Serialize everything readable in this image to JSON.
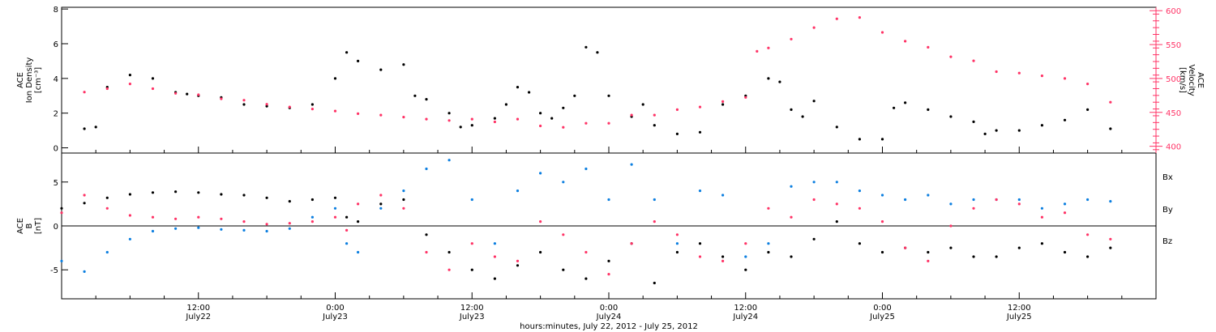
{
  "chart_data": [
    {
      "type": "scatter",
      "panel": "top",
      "ylabel_lines": [
        "ACE",
        "Ion Density",
        "[cm⁻³]"
      ],
      "ylim": [
        -0.3,
        8.1
      ],
      "y_ticks": [
        0,
        2,
        4,
        6,
        8
      ],
      "y2label_lines": [
        "ACE",
        "Velocity",
        "[km/s]"
      ],
      "y2lim": [
        390,
        605
      ],
      "y2_ticks": [
        400,
        450,
        500,
        550,
        600
      ],
      "colors": {
        "density": "#000000",
        "velocity": "#ff3366"
      },
      "series": [
        {
          "axis": "left",
          "x": [
            2,
            3,
            4,
            6,
            8,
            10,
            11,
            12,
            14,
            16,
            18,
            20,
            22,
            24,
            25,
            26,
            28,
            30,
            31,
            32,
            34,
            35,
            36,
            38,
            39,
            40,
            41,
            42,
            43,
            44,
            45,
            46,
            47,
            48,
            50,
            51,
            52,
            54,
            56,
            58,
            60,
            62,
            63,
            64,
            65,
            66,
            68,
            70,
            72,
            73,
            74,
            76,
            78,
            80,
            81,
            82,
            84,
            86,
            88,
            90,
            92
          ],
          "values": [
            1.1,
            1.2,
            3.5,
            4.2,
            4.0,
            3.2,
            3.1,
            3.0,
            2.9,
            2.5,
            2.4,
            2.3,
            2.5,
            4.0,
            5.5,
            5.0,
            4.5,
            4.8,
            3.0,
            2.8,
            2.0,
            1.2,
            1.3,
            1.7,
            2.5,
            3.5,
            3.2,
            2.0,
            1.7,
            2.3,
            3.0,
            5.8,
            5.5,
            3.0,
            1.8,
            2.5,
            1.3,
            0.8,
            0.9,
            2.5,
            3.0,
            4.0,
            3.8,
            2.2,
            1.8,
            2.7,
            1.2,
            0.5,
            0.5,
            2.3,
            2.6,
            2.2,
            1.8,
            1.5,
            0.8,
            1.0,
            1.0,
            1.3,
            1.6,
            2.2,
            1.1
          ]
        },
        {
          "axis": "right",
          "x": [
            2,
            4,
            6,
            8,
            10,
            12,
            14,
            16,
            18,
            20,
            22,
            24,
            26,
            28,
            30,
            32,
            34,
            36,
            38,
            40,
            42,
            44,
            46,
            48,
            50,
            52,
            54,
            56,
            58,
            60,
            61,
            62,
            64,
            66,
            68,
            70,
            72,
            74,
            76,
            78,
            80,
            82,
            84,
            86,
            88,
            90,
            92
          ],
          "values": [
            480,
            485,
            492,
            485,
            478,
            476,
            470,
            468,
            462,
            458,
            455,
            452,
            448,
            446,
            443,
            440,
            438,
            440,
            436,
            440,
            430,
            428,
            434,
            434,
            446,
            446,
            454,
            458,
            466,
            472,
            540,
            545,
            558,
            575,
            588,
            590,
            568,
            555,
            546,
            532,
            526,
            510,
            508,
            504,
            500,
            492,
            465
          ]
        }
      ]
    },
    {
      "type": "scatter",
      "panel": "bottom",
      "ylabel_lines": [
        "ACE",
        "B",
        "[nT]"
      ],
      "ylim": [
        -8.3,
        8.3
      ],
      "y_ticks": [
        -5,
        0,
        5
      ],
      "xlabel": "hours:minutes, July 22, 2012 - July 25, 2012",
      "x_ticks": [
        {
          "t": 12,
          "time": "12:00",
          "date": "July22"
        },
        {
          "t": 24,
          "time": "0:00",
          "date": "July23"
        },
        {
          "t": 36,
          "time": "12:00",
          "date": "July23"
        },
        {
          "t": 48,
          "time": "0:00",
          "date": "July24"
        },
        {
          "t": 60,
          "time": "12:00",
          "date": "July24"
        },
        {
          "t": 72,
          "time": "0:00",
          "date": "July25"
        },
        {
          "t": 84,
          "time": "12:00",
          "date": "July25"
        }
      ],
      "xlim": [
        0,
        96
      ],
      "series": [
        {
          "name": "Bx",
          "color": "#000000",
          "x": [
            0,
            2,
            4,
            6,
            8,
            10,
            12,
            14,
            16,
            18,
            20,
            22,
            24,
            25,
            26,
            28,
            30,
            32,
            34,
            36,
            38,
            40,
            42,
            44,
            46,
            48,
            50,
            52,
            54,
            56,
            58,
            60,
            62,
            64,
            66,
            68,
            70,
            72,
            74,
            76,
            78,
            80,
            82,
            84,
            86,
            88,
            90,
            92
          ],
          "values": [
            2.0,
            2.6,
            3.2,
            3.6,
            3.8,
            3.9,
            3.8,
            3.6,
            3.5,
            3.2,
            2.8,
            3.0,
            3.2,
            1.0,
            0.5,
            2.5,
            3.0,
            -1.0,
            -3.0,
            -5.0,
            -6.0,
            -4.5,
            -3.0,
            -5.0,
            -6.0,
            -4.0,
            -2.0,
            -6.5,
            -3.0,
            -2.0,
            -3.5,
            -5.0,
            -3.0,
            -3.5,
            -1.5,
            0.5,
            -2.0,
            -3.0,
            -2.5,
            -3.0,
            -2.5,
            -3.5,
            -3.5,
            -2.5,
            -2.0,
            -3.0,
            -3.5,
            -2.5
          ]
        },
        {
          "name": "By",
          "color": "#0c7fe0",
          "x": [
            0,
            2,
            4,
            6,
            8,
            10,
            12,
            14,
            16,
            18,
            20,
            22,
            24,
            25,
            26,
            28,
            30,
            32,
            34,
            36,
            38,
            40,
            42,
            44,
            46,
            48,
            50,
            52,
            54,
            56,
            58,
            60,
            62,
            64,
            66,
            68,
            70,
            72,
            74,
            76,
            78,
            80,
            82,
            84,
            86,
            88,
            90,
            92
          ],
          "values": [
            -4.0,
            -5.2,
            -3.0,
            -1.5,
            -0.6,
            -0.3,
            -0.2,
            -0.4,
            -0.5,
            -0.6,
            -0.3,
            1.0,
            2.0,
            -2.0,
            -3.0,
            2.0,
            4.0,
            6.5,
            7.5,
            3.0,
            -2.0,
            4.0,
            6.0,
            5.0,
            6.5,
            3.0,
            7.0,
            3.0,
            -2.0,
            4.0,
            3.5,
            -3.5,
            -2.0,
            4.5,
            5.0,
            5.0,
            4.0,
            3.5,
            3.0,
            3.5,
            2.5,
            3.0,
            3.0,
            3.0,
            2.0,
            2.5,
            3.0,
            2.8
          ]
        },
        {
          "name": "Bz",
          "color": "#ff3366",
          "x": [
            0,
            2,
            4,
            6,
            8,
            10,
            12,
            14,
            16,
            18,
            20,
            22,
            24,
            25,
            26,
            28,
            30,
            32,
            34,
            36,
            38,
            40,
            42,
            44,
            46,
            48,
            50,
            52,
            54,
            56,
            58,
            60,
            62,
            64,
            66,
            68,
            70,
            72,
            74,
            76,
            78,
            80,
            82,
            84,
            86,
            88,
            90,
            92
          ],
          "values": [
            1.5,
            3.5,
            2.0,
            1.2,
            1.0,
            0.8,
            1.0,
            0.8,
            0.5,
            0.2,
            0.3,
            0.5,
            1.0,
            -0.5,
            2.5,
            3.5,
            2.0,
            -3.0,
            -5.0,
            -2.0,
            -3.5,
            -4.0,
            0.5,
            -1.0,
            -3.0,
            -5.5,
            -2.0,
            0.5,
            -1.0,
            -3.5,
            -4.0,
            -2.0,
            2.0,
            1.0,
            3.0,
            2.5,
            2.0,
            0.5,
            -2.5,
            -4.0,
            0.0,
            2.0,
            3.0,
            2.5,
            1.0,
            1.5,
            -1.0,
            -1.5
          ]
        }
      ],
      "legend": [
        "Bx",
        "By",
        "Bz"
      ],
      "legend_placement": "right"
    }
  ]
}
